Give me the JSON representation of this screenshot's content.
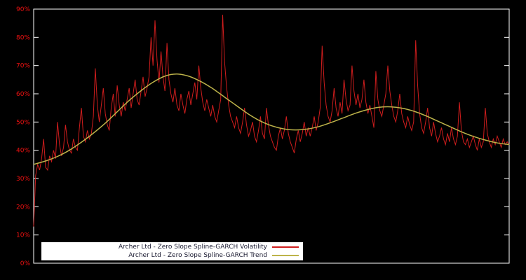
{
  "chart_data": {
    "type": "line",
    "title": "",
    "xlabel": "",
    "ylabel": "",
    "ylim": [
      0,
      90
    ],
    "y_ticks": [
      "0%",
      "10%",
      "20%",
      "30%",
      "40%",
      "50%",
      "60%",
      "70%",
      "80%",
      "90%"
    ],
    "background": "#000000",
    "frame_color": "#ffffff",
    "tick_label_color": "#ee1111",
    "legend_position": "bottom-inside",
    "series": [
      {
        "name": "Archer Ltd - Zero Slope Spline-GARCH Volatility",
        "color": "#cf1d1d",
        "values": [
          13,
          31,
          35,
          33,
          37,
          44,
          34,
          33,
          38,
          36,
          40,
          37,
          50,
          42,
          38,
          41,
          49,
          43,
          40,
          39,
          44,
          41,
          40,
          48,
          55,
          45,
          43,
          47,
          44,
          46,
          52,
          69,
          56,
          50,
          56,
          62,
          53,
          49,
          47,
          55,
          60,
          52,
          63,
          56,
          52,
          57,
          54,
          58,
          62,
          55,
          60,
          65,
          58,
          56,
          61,
          66,
          59,
          62,
          66,
          80,
          70,
          86,
          72,
          64,
          75,
          66,
          61,
          78,
          65,
          60,
          57,
          62,
          56,
          54,
          60,
          56,
          53,
          58,
          61,
          56,
          60,
          64,
          58,
          70,
          62,
          57,
          54,
          58,
          55,
          52,
          56,
          52,
          50,
          54,
          58,
          88,
          71,
          62,
          56,
          52,
          50,
          48,
          52,
          48,
          46,
          50,
          55,
          49,
          45,
          47,
          50,
          45,
          43,
          47,
          52,
          46,
          44,
          55,
          49,
          45,
          43,
          41,
          40,
          45,
          48,
          44,
          47,
          52,
          46,
          43,
          41,
          39,
          44,
          47,
          43,
          46,
          50,
          45,
          48,
          45,
          48,
          52,
          47,
          50,
          55,
          77,
          64,
          56,
          52,
          50,
          54,
          62,
          55,
          52,
          57,
          53,
          65,
          58,
          54,
          56,
          70,
          61,
          56,
          60,
          55,
          58,
          65,
          57,
          53,
          56,
          52,
          48,
          68,
          58,
          54,
          52,
          56,
          60,
          70,
          61,
          56,
          52,
          50,
          54,
          60,
          53,
          50,
          48,
          52,
          49,
          47,
          50,
          79,
          63,
          53,
          48,
          46,
          50,
          55,
          48,
          45,
          50,
          46,
          43,
          45,
          48,
          44,
          42,
          46,
          43,
          48,
          44,
          42,
          45,
          57,
          47,
          43,
          42,
          44,
          41,
          43,
          45,
          42,
          40,
          44,
          41,
          43,
          55,
          46,
          43,
          41,
          44,
          42,
          45,
          43,
          41,
          44,
          42,
          43,
          42
        ]
      },
      {
        "name": "Archer Ltd - Zero Slope Spline-GARCH Trend",
        "color": "#bdb34a",
        "values": [
          35.0,
          36.2,
          37.8,
          40.0,
          42.8,
          46.0,
          49.5,
          53.5,
          57.5,
          61.0,
          64.0,
          66.2,
          67.0,
          66.3,
          64.5,
          62.0,
          59.0,
          56.0,
          53.0,
          50.5,
          48.7,
          47.6,
          47.2,
          47.5,
          48.4,
          49.8,
          51.4,
          53.0,
          54.3,
          55.2,
          55.4,
          54.9,
          53.8,
          52.2,
          50.3,
          48.4,
          46.5,
          44.9,
          43.6,
          42.6,
          42.0
        ]
      }
    ]
  }
}
